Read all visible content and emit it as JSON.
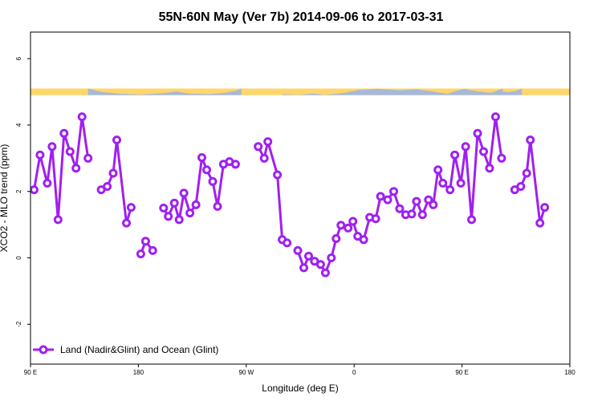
{
  "chart_data": {
    "type": "line",
    "title": "55N-60N May (Ver 7b)   2014-09-06 to 2017-03-31",
    "xlabel": "Longitude (deg E)",
    "ylabel": "XCO2 - MLO trend (ppm)",
    "xlim": [
      90,
      540
    ],
    "ylim": [
      -3.2,
      6.8
    ],
    "x_ticks": [
      {
        "value": 90,
        "label": "90 E"
      },
      {
        "value": 180,
        "label": "180"
      },
      {
        "value": 270,
        "label": "90 W"
      },
      {
        "value": 360,
        "label": "0"
      },
      {
        "value": 450,
        "label": "90 E"
      },
      {
        "value": 540,
        "label": "180"
      }
    ],
    "y_ticks": [
      {
        "value": -2,
        "label": "-2"
      },
      {
        "value": 0,
        "label": "0"
      },
      {
        "value": 2,
        "label": "2"
      },
      {
        "value": 4,
        "label": "4"
      },
      {
        "value": 6,
        "label": "6"
      }
    ],
    "grid": false,
    "legend_position": "bottom-left",
    "land_strip_ylim": [
      4.9,
      5.1
    ],
    "colors": {
      "series": "#a020f0",
      "land": "#ffd66b",
      "ocean": "#a8b9d6"
    },
    "series": [
      {
        "name": "Land (Nadir&Glint) and Ocean (Glint)",
        "segments": [
          [
            [
              93,
              2.05
            ],
            [
              98,
              3.1
            ],
            [
              104,
              2.25
            ],
            [
              108,
              3.35
            ],
            [
              113,
              1.15
            ],
            [
              118,
              3.75
            ],
            [
              123,
              3.2
            ],
            [
              128,
              2.7
            ],
            [
              133,
              4.25
            ],
            [
              138,
              3.0
            ]
          ],
          [
            [
              149,
              2.05
            ],
            [
              154,
              2.15
            ],
            [
              159,
              2.55
            ],
            [
              162,
              3.55
            ],
            [
              170,
              1.05
            ],
            [
              174,
              1.52
            ]
          ],
          [
            [
              182,
              0.12
            ],
            [
              186,
              0.5
            ],
            [
              192,
              0.22
            ]
          ],
          [
            [
              201,
              1.5
            ],
            [
              205,
              1.25
            ],
            [
              210,
              1.65
            ],
            [
              214,
              1.15
            ],
            [
              218,
              1.95
            ],
            [
              223,
              1.35
            ],
            [
              228,
              1.6
            ],
            [
              233,
              3.02
            ],
            [
              237,
              2.65
            ],
            [
              242,
              2.3
            ],
            [
              246,
              1.55
            ],
            [
              251,
              2.82
            ],
            [
              256,
              2.9
            ],
            [
              261,
              2.82
            ]
          ],
          [
            [
              280,
              3.35
            ],
            [
              285,
              3.0
            ],
            [
              288,
              3.5
            ],
            [
              296,
              2.5
            ],
            [
              300,
              0.55
            ],
            [
              304,
              0.45
            ]
          ],
          [
            [
              313,
              0.22
            ],
            [
              318,
              -0.3
            ],
            [
              322,
              0.05
            ],
            [
              327,
              -0.1
            ],
            [
              332,
              -0.2
            ],
            [
              336,
              -0.45
            ],
            [
              341,
              0.0
            ],
            [
              345,
              0.58
            ],
            [
              349,
              0.98
            ],
            [
              355,
              0.9
            ],
            [
              359,
              1.1
            ],
            [
              363,
              0.65
            ],
            [
              368,
              0.55
            ],
            [
              373,
              1.22
            ],
            [
              378,
              1.18
            ],
            [
              382,
              1.85
            ],
            [
              388,
              1.75
            ],
            [
              393,
              2.0
            ],
            [
              398,
              1.48
            ],
            [
              403,
              1.3
            ],
            [
              408,
              1.32
            ],
            [
              412,
              1.7
            ],
            [
              417,
              1.3
            ],
            [
              422,
              1.75
            ],
            [
              426,
              1.6
            ],
            [
              430,
              2.65
            ],
            [
              434,
              2.25
            ],
            [
              440,
              2.05
            ],
            [
              444,
              3.1
            ],
            [
              449,
              2.25
            ],
            [
              453,
              3.35
            ],
            [
              458,
              1.15
            ],
            [
              463,
              3.75
            ],
            [
              468,
              3.2
            ],
            [
              473,
              2.7
            ],
            [
              478,
              4.25
            ],
            [
              483,
              3.0
            ]
          ],
          [
            [
              494,
              2.05
            ],
            [
              499,
              2.15
            ],
            [
              504,
              2.55
            ],
            [
              507,
              3.55
            ],
            [
              515,
              1.05
            ],
            [
              519,
              1.52
            ]
          ]
        ]
      }
    ]
  }
}
